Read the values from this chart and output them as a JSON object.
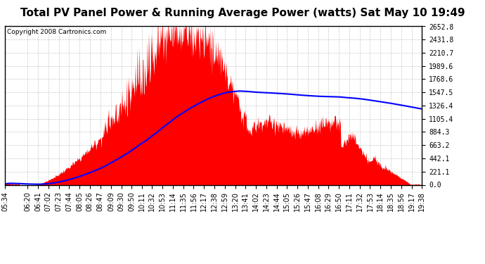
{
  "title": "Total PV Panel Power & Running Average Power (watts) Sat May 10 19:49",
  "copyright": "Copyright 2008 Cartronics.com",
  "yticks": [
    0.0,
    221.1,
    442.1,
    663.2,
    884.3,
    1105.4,
    1326.4,
    1547.5,
    1768.6,
    1989.6,
    2210.7,
    2431.8,
    2652.8
  ],
  "ymax": 2652.8,
  "ymin": 0.0,
  "bar_color": "#ff0000",
  "line_color": "#0000ff",
  "background_color": "#ffffff",
  "grid_color": "#bbbbbb",
  "title_fontsize": 11,
  "copyright_fontsize": 6.5,
  "tick_fontsize": 7
}
